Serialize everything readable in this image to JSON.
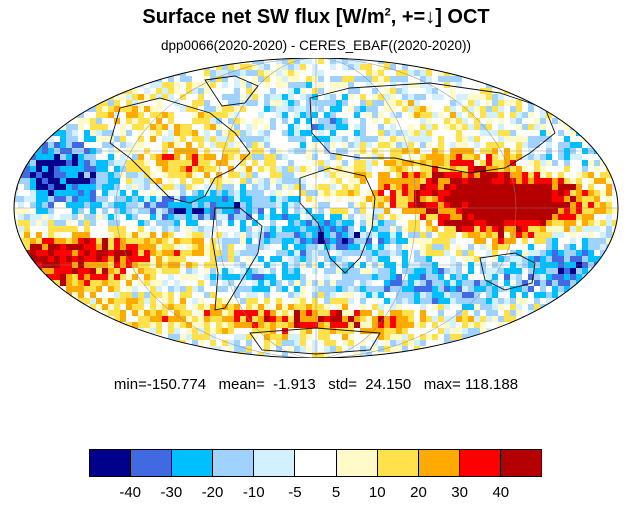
{
  "title": {
    "prefix": "Surface net SW flux [W/m",
    "sup": "2",
    "suffix": ", +=↓]  OCT"
  },
  "subtitle": "dpp0066(2020-2020) - CERES_EBAF((2020-2020))",
  "stats": {
    "text": "min=-150.774   mean=  -1.913   std=  24.150   max= 118.188",
    "min": -150.774,
    "mean": -1.913,
    "std": 24.15,
    "max": 118.188
  },
  "colorbar": {
    "colors": [
      "#00008b",
      "#4169e1",
      "#00bfff",
      "#a0d2ff",
      "#d2f0ff",
      "#ffffff",
      "#fffac8",
      "#ffe14b",
      "#ffaa00",
      "#ff0000",
      "#b40000"
    ],
    "labels": [
      "-40",
      "-30",
      "-20",
      "-10",
      "-5",
      "5",
      "10",
      "20",
      "30",
      "40"
    ]
  },
  "map": {
    "projection": "Mollweide",
    "variable": "Surface net SW flux difference",
    "units": "W/m2",
    "month": "OCT"
  }
}
